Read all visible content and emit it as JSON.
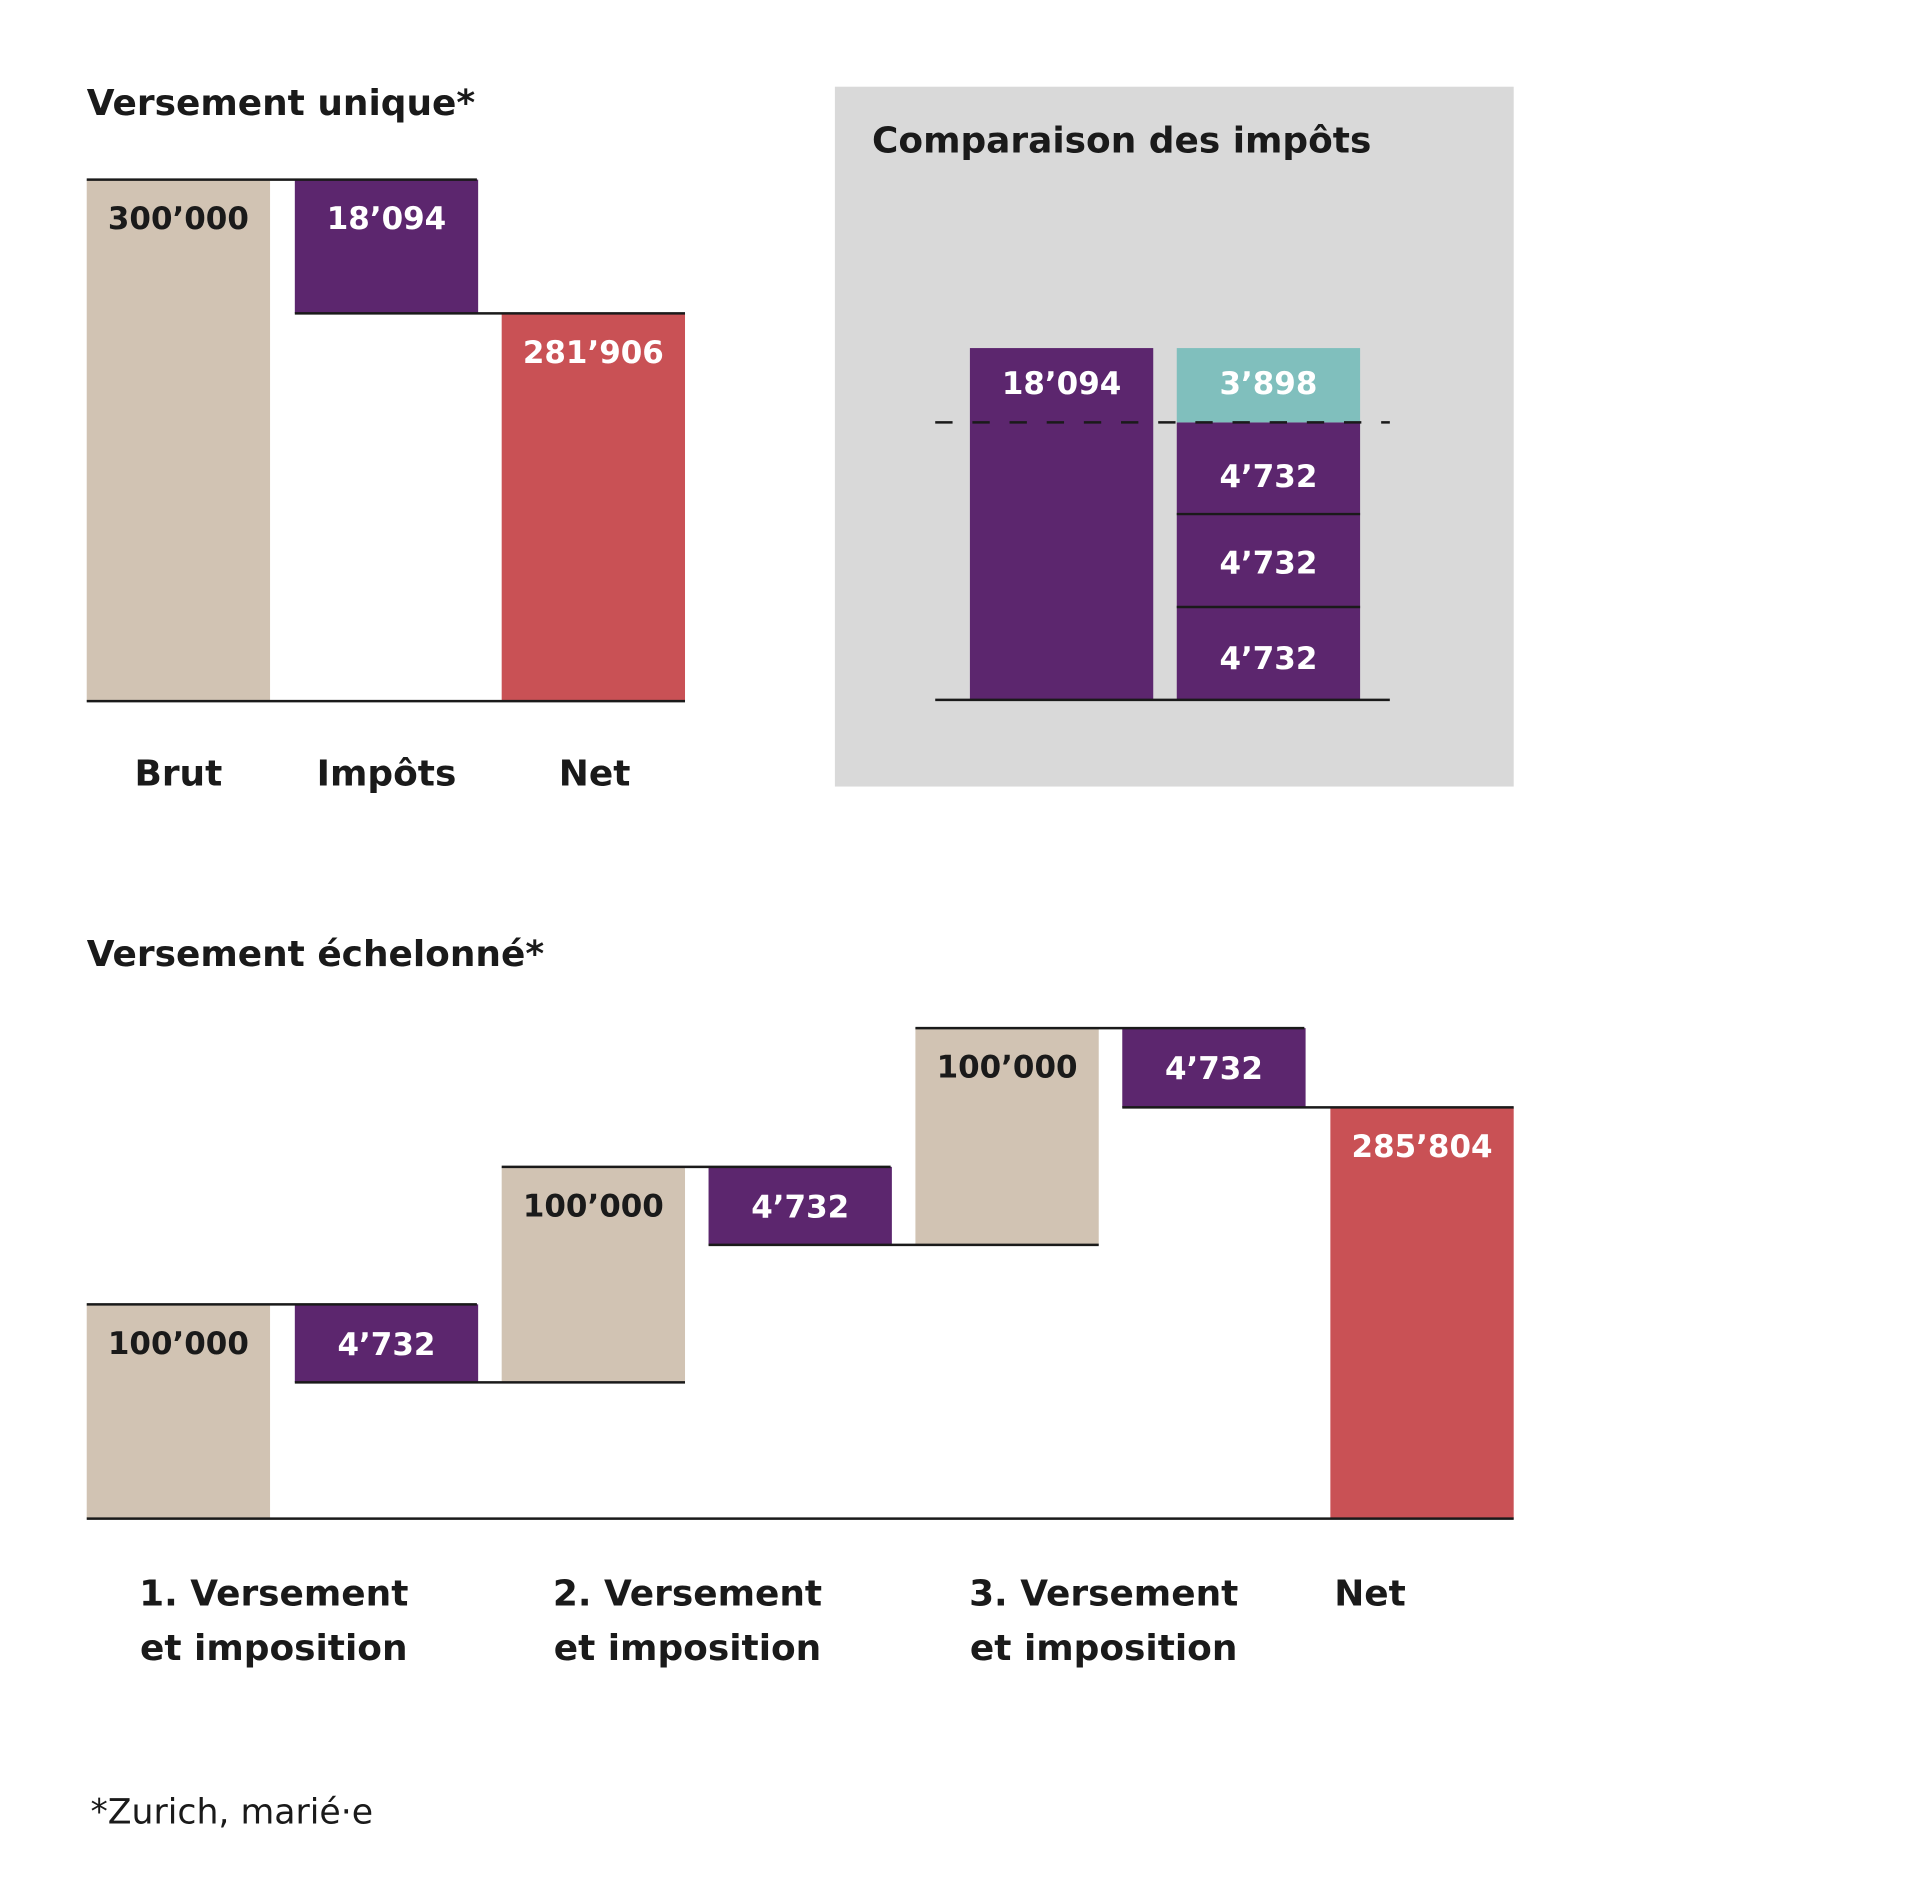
{
  "colors": {
    "gross": "#d1c3b3",
    "tax": "#5c266e",
    "net": "#c95155",
    "saving": "#80bfbd",
    "panel": "#d9d9d9"
  },
  "chart_data": [
    {
      "type": "bar",
      "subtype": "waterfall",
      "title": "Versement unique*",
      "categories": [
        "Brut",
        "Impôts",
        "Net"
      ],
      "values": [
        300000,
        -18094,
        281906
      ],
      "labels": [
        "300’000",
        "18’094",
        "281’906"
      ]
    },
    {
      "type": "bar",
      "subtype": "stacked",
      "title": "Comparaison des impôts",
      "stacks": [
        {
          "segments": [
            {
              "value": 18094,
              "label": "18’094",
              "color": "tax"
            }
          ]
        },
        {
          "segments": [
            {
              "value": 4732,
              "label": "4’732",
              "color": "tax"
            },
            {
              "value": 4732,
              "label": "4’732",
              "color": "tax"
            },
            {
              "value": 4732,
              "label": "4’732",
              "color": "tax"
            },
            {
              "value": 3898,
              "label": "3’898",
              "color": "saving"
            }
          ]
        }
      ],
      "reference_line": "dashed"
    },
    {
      "type": "bar",
      "subtype": "waterfall",
      "title": "Versement échelonné*",
      "categories": [
        "1. Versement\net imposition",
        "2. Versement\net imposition",
        "3. Versement\net imposition",
        "Net"
      ],
      "category_lines": [
        [
          "1. Versement",
          "et imposition"
        ],
        [
          "2. Versement",
          "et imposition"
        ],
        [
          "3. Versement",
          "et imposition"
        ],
        [
          "Net"
        ]
      ],
      "steps": [
        {
          "value": 100000,
          "label": "100’000"
        },
        {
          "value": -4732,
          "label": "4’732"
        },
        {
          "value": 100000,
          "label": "100’000"
        },
        {
          "value": -4732,
          "label": "4’732"
        },
        {
          "value": 100000,
          "label": "100’000"
        },
        {
          "value": -4732,
          "label": "4’732"
        },
        {
          "value": 285804,
          "label": "285’804"
        }
      ]
    }
  ],
  "footnote": "*Zurich, marié·e"
}
